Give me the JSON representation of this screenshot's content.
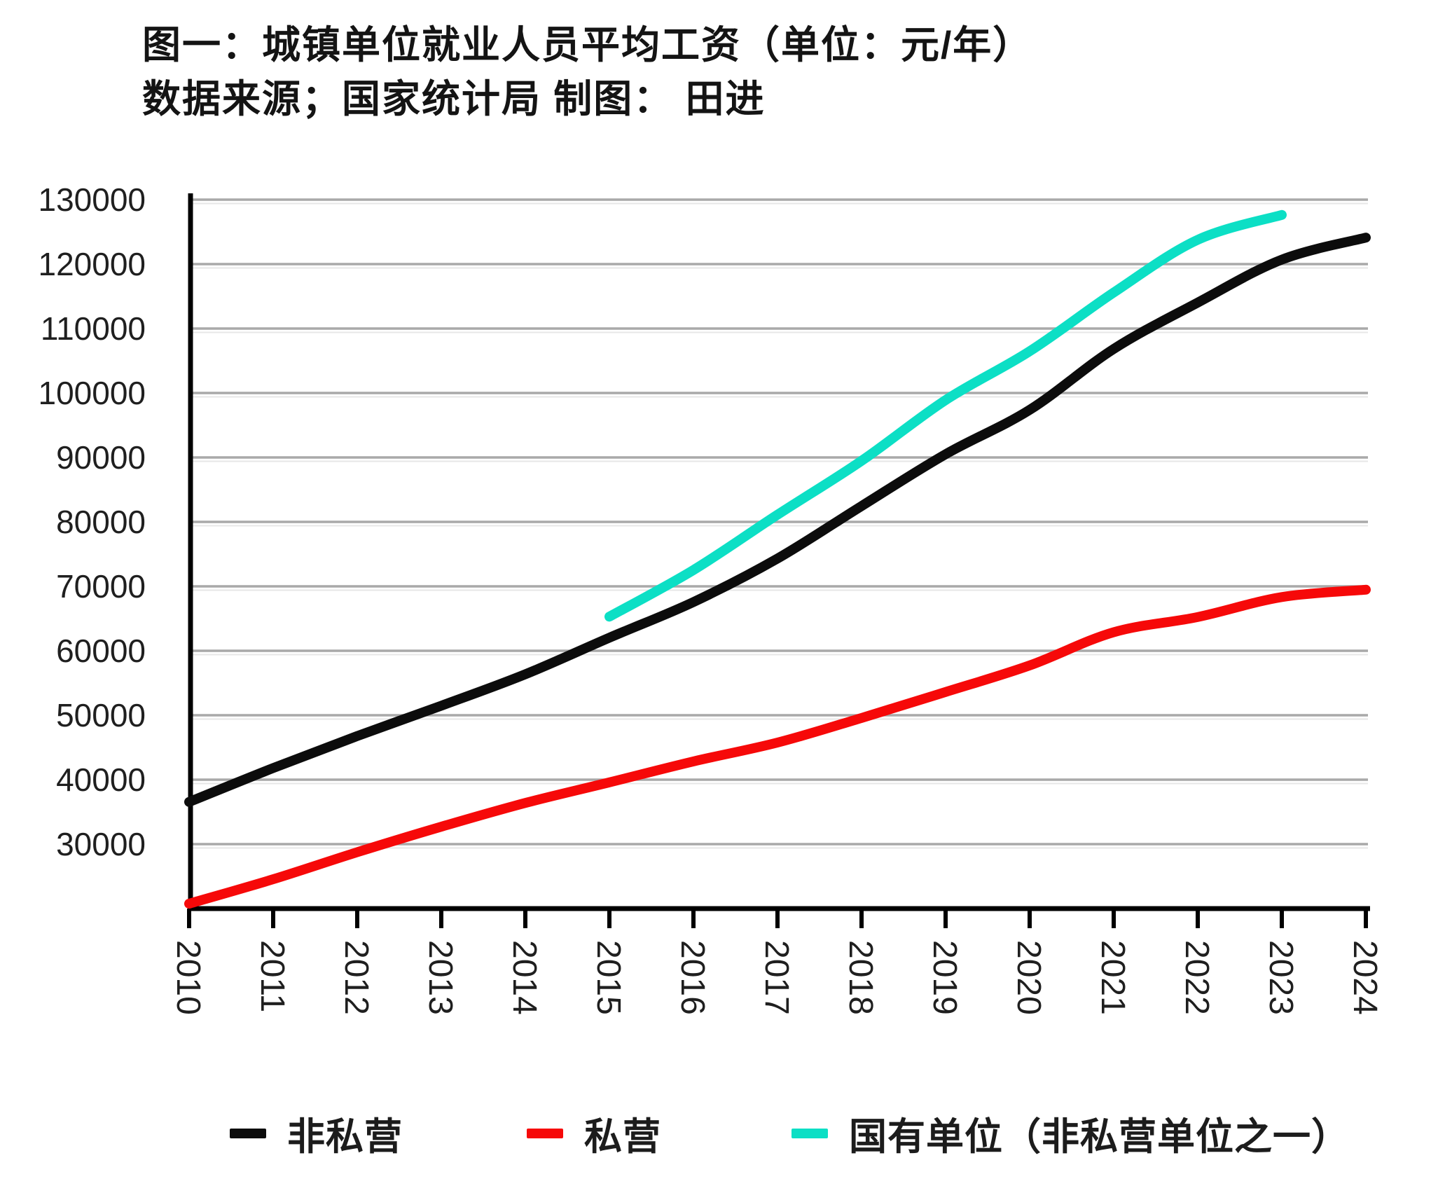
{
  "figure": {
    "title": "图一：城镇单位就业人员平均工资（单位：元/年）",
    "subtitle": "数据来源；国家统计局 制图： 田进"
  },
  "chart_data": {
    "type": "line",
    "title": "图一：城镇单位就业人员平均工资（单位：元/年）",
    "source_note": "数据来源；国家统计局 制图： 田进",
    "x_years": [
      2010,
      2011,
      2012,
      2013,
      2014,
      2015,
      2016,
      2017,
      2018,
      2019,
      2020,
      2021,
      2022,
      2023,
      2024
    ],
    "ylim": [
      20000,
      130000
    ],
    "yticks": [
      30000,
      40000,
      50000,
      60000,
      70000,
      80000,
      90000,
      100000,
      110000,
      120000,
      130000
    ],
    "grid": "horizontal",
    "legend_position": "bottom",
    "colors": {
      "grid": "#a9a9a9",
      "grid_echo": "#e7e7e7",
      "axis": "#000000",
      "tick_label": "#1f1f1f"
    },
    "series": [
      {
        "name": "非私营",
        "color": "#0c0c0c",
        "x": [
          2010,
          2011,
          2012,
          2013,
          2014,
          2015,
          2016,
          2017,
          2018,
          2019,
          2020,
          2021,
          2022,
          2023,
          2024
        ],
        "values": [
          36539,
          41799,
          46769,
          51483,
          56360,
          62029,
          67569,
          74318,
          82461,
          90501,
          97379,
          106837,
          114029,
          120698,
          124110
        ]
      },
      {
        "name": "私营",
        "color": "#f60909",
        "x": [
          2010,
          2011,
          2012,
          2013,
          2014,
          2015,
          2016,
          2017,
          2018,
          2019,
          2020,
          2021,
          2022,
          2023,
          2024
        ],
        "values": [
          20759,
          24556,
          28752,
          32706,
          36390,
          39589,
          42833,
          45761,
          49575,
          53604,
          57727,
          62884,
          65237,
          68340,
          69476
        ]
      },
      {
        "name": "国有单位（非私营单位之一）",
        "color": "#0cdfc5",
        "x": [
          2015,
          2016,
          2017,
          2018,
          2019,
          2020,
          2021,
          2022,
          2023
        ],
        "values": [
          65296,
          72538,
          81114,
          89474,
          98899,
          106474,
          115583,
          123775,
          127629
        ]
      }
    ]
  }
}
